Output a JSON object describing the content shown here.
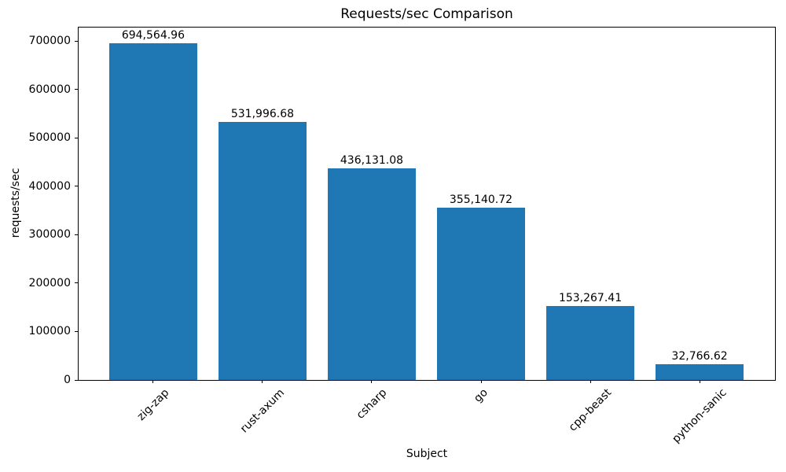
{
  "chart_data": {
    "type": "bar",
    "title": "Requests/sec Comparison",
    "xlabel": "Subject",
    "ylabel": "requests/sec",
    "categories": [
      "zig-zap",
      "rust-axum",
      "csharp",
      "go",
      "cpp-beast",
      "python-sanic"
    ],
    "values": [
      694564.96,
      531996.68,
      436131.08,
      355140.72,
      153267.41,
      32766.62
    ],
    "bar_value_labels": [
      "694,564.96",
      "531,996.68",
      "436,131.08",
      "355,140.72",
      "153,267.41",
      "32,766.62"
    ],
    "yticks": [
      0,
      100000,
      200000,
      300000,
      400000,
      500000,
      600000,
      700000
    ],
    "ytick_labels": [
      "0",
      "100000",
      "200000",
      "300000",
      "400000",
      "500000",
      "600000",
      "700000"
    ],
    "ylim": [
      0,
      729293
    ],
    "x_tick_rotation_deg": 45,
    "bar_color": "#1f77b4",
    "axis_color": "#000000",
    "background_color": "#ffffff",
    "grid": false,
    "legend_position": "none"
  }
}
